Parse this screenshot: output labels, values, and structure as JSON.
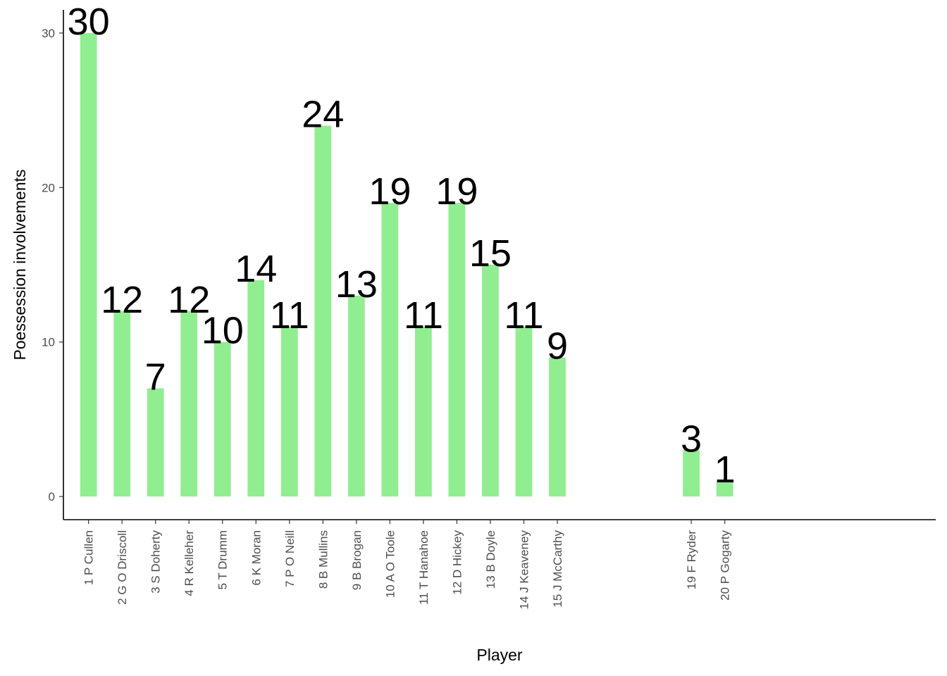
{
  "chart_data": {
    "type": "bar",
    "title": "",
    "xlabel": "Player",
    "ylabel": "Poessession involvements",
    "ylim": [
      -1.5,
      31.5
    ],
    "yticks": [
      0,
      10,
      20,
      30
    ],
    "bar_color": "#90EE90",
    "grid": false,
    "legend": "none",
    "categories": [
      "1  P Cullen",
      "2  G O Driscoll",
      "3  S Doherty",
      "4  R Kelleher",
      "5  T Drumm",
      "6  K Moran",
      "7  P O Neill",
      "8  B Mullins",
      "9  B Brogan",
      "10  A O Toole",
      "11 T Hanahoe",
      "12  D Hickey",
      "13  B Doyle",
      "14  J Keaveney",
      "15  J McCarthy",
      "19  F Ryder",
      "20  P Gogarty"
    ],
    "x": [
      1,
      2,
      3,
      4,
      5,
      6,
      7,
      8,
      9,
      10,
      11,
      12,
      13,
      14,
      15,
      19,
      20
    ],
    "xlim": [
      0.25,
      26.3
    ],
    "values": [
      30,
      12,
      7,
      12,
      10,
      14,
      11,
      24,
      13,
      19,
      11,
      19,
      15,
      11,
      9,
      3,
      1
    ]
  }
}
